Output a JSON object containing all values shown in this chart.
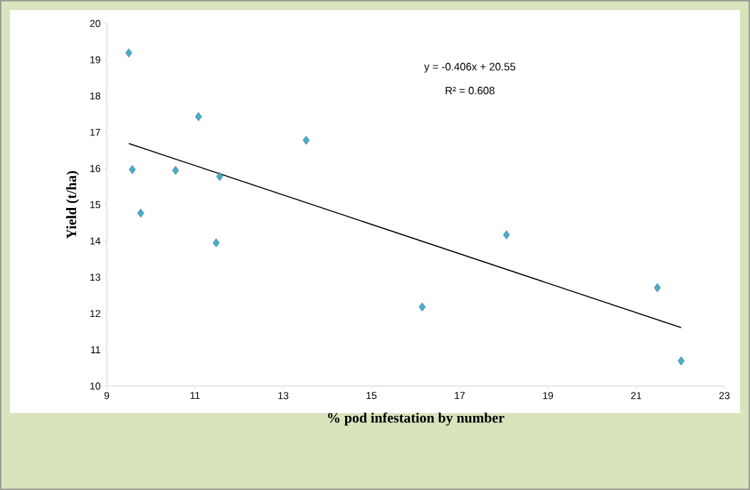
{
  "chart_data": {
    "type": "scatter",
    "xlabel": "% pod infestation by number",
    "ylabel": "Yield  (t/ha)",
    "annotations": [
      "y = -0.406x + 20.55",
      "R² = 0.608"
    ],
    "xlim": [
      9,
      23
    ],
    "ylim": [
      10,
      20
    ],
    "xticks": [
      9,
      11,
      13,
      15,
      17,
      19,
      21,
      23
    ],
    "yticks": [
      10,
      11,
      12,
      13,
      14,
      15,
      16,
      17,
      18,
      19,
      20
    ],
    "marker": "diamond",
    "series": [
      {
        "color": "#4bacc6",
        "x": [
          9.5,
          9.58,
          9.77,
          10.56,
          11.08,
          11.56,
          11.48,
          13.52,
          16.15,
          18.06,
          21.48,
          22.02
        ],
        "values": [
          19.19,
          15.97,
          14.77,
          15.95,
          17.43,
          15.78,
          13.95,
          16.78,
          12.18,
          14.17,
          12.71,
          10.69
        ]
      },
      {
        "type": "line",
        "color": "#000000",
        "marker": "none",
        "x": [
          9.5,
          22.02
        ],
        "values": [
          16.69,
          11.61
        ]
      }
    ]
  }
}
